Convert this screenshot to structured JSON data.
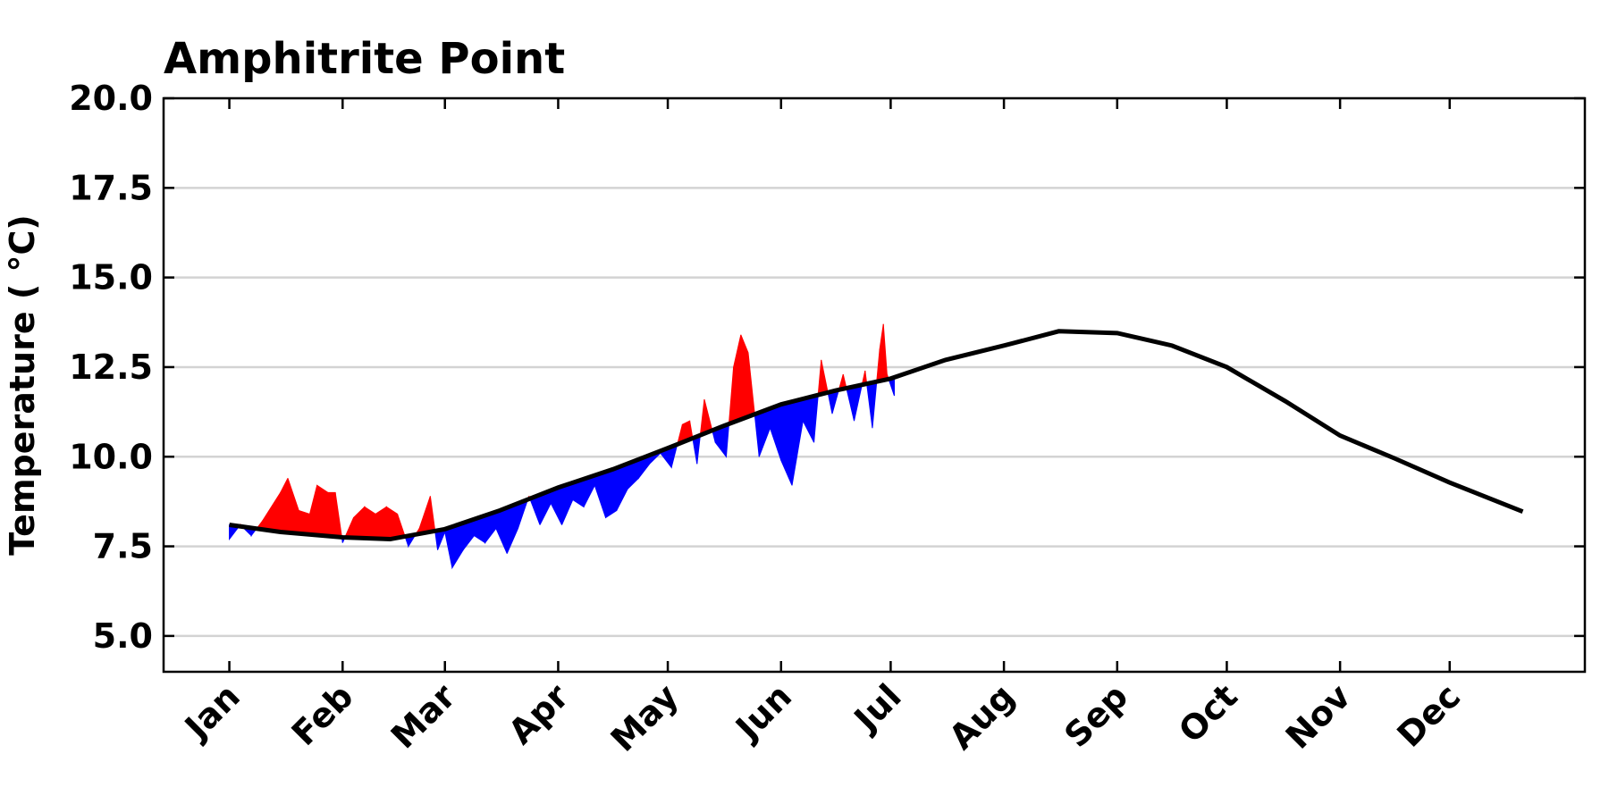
{
  "chart_data": {
    "type": "line",
    "title": "Amphitrite Point",
    "ylabel": "Temperature ( °C)",
    "xlim": [
      -17,
      372
    ],
    "ylim": [
      4,
      20
    ],
    "xticks": [
      {
        "value": 1,
        "label": "Jan"
      },
      {
        "value": 32,
        "label": "Feb"
      },
      {
        "value": 60,
        "label": "Mar"
      },
      {
        "value": 91,
        "label": "Apr"
      },
      {
        "value": 121,
        "label": "May"
      },
      {
        "value": 152,
        "label": "Jun"
      },
      {
        "value": 182,
        "label": "Jul"
      },
      {
        "value": 213,
        "label": "Aug"
      },
      {
        "value": 244,
        "label": "Sep"
      },
      {
        "value": 274,
        "label": "Oct"
      },
      {
        "value": 305,
        "label": "Nov"
      },
      {
        "value": 335,
        "label": "Dec"
      }
    ],
    "yticks": [
      {
        "value": 5,
        "label": "5.0"
      },
      {
        "value": 7.5,
        "label": "7.5"
      },
      {
        "value": 10,
        "label": "10.0"
      },
      {
        "value": 12.5,
        "label": "12.5"
      },
      {
        "value": 15,
        "label": "15.0"
      },
      {
        "value": 17.5,
        "label": "17.5"
      },
      {
        "value": 20,
        "label": "20.0"
      }
    ],
    "grid": true,
    "series": [
      {
        "color": "#000000",
        "x": [
          1,
          15,
          32,
          45,
          60,
          75,
          91,
          106,
          121,
          136,
          152,
          167,
          182,
          197,
          213,
          228,
          244,
          259,
          274,
          290,
          305,
          320,
          335,
          355
        ],
        "values": [
          8.1,
          7.9,
          7.75,
          7.7,
          7.98,
          8.5,
          9.14,
          9.65,
          10.24,
          10.85,
          11.46,
          11.85,
          12.18,
          12.7,
          13.1,
          13.5,
          13.45,
          13.1,
          12.5,
          11.55,
          10.59,
          9.95,
          9.28,
          8.47
        ]
      },
      {
        "above_color": "#ff0000",
        "below_color": "#0000ff",
        "x": [
          1,
          4,
          7,
          10,
          15,
          17,
          20,
          23,
          25,
          28,
          30,
          32,
          35,
          38,
          41,
          44,
          47,
          50,
          53,
          56,
          58,
          60,
          62,
          65,
          68,
          71,
          74,
          77,
          80,
          83,
          86,
          89,
          92,
          95,
          98,
          101,
          104,
          107,
          110,
          113,
          116,
          119,
          122,
          125,
          127,
          129,
          131,
          134,
          137,
          139,
          141,
          143,
          146,
          149,
          152,
          155,
          158,
          161,
          163,
          166,
          169,
          172,
          175,
          177,
          179,
          180,
          181,
          183
        ],
        "values": [
          7.7,
          8.1,
          7.8,
          8.2,
          9.0,
          9.4,
          8.5,
          8.4,
          9.2,
          9.0,
          9.0,
          7.6,
          8.3,
          8.6,
          8.4,
          8.6,
          8.4,
          7.5,
          8.0,
          8.9,
          7.4,
          7.9,
          6.9,
          7.4,
          7.8,
          7.6,
          8.0,
          7.3,
          8.0,
          8.9,
          8.1,
          8.7,
          8.1,
          8.8,
          8.6,
          9.2,
          8.3,
          8.5,
          9.1,
          9.4,
          9.8,
          10.1,
          9.7,
          10.9,
          11.0,
          9.8,
          11.6,
          10.4,
          10.0,
          12.5,
          13.4,
          12.9,
          10.0,
          10.8,
          9.9,
          9.2,
          11.0,
          10.4,
          12.7,
          11.2,
          12.3,
          11.0,
          12.4,
          10.8,
          13.0,
          13.7,
          12.3,
          11.7
        ]
      }
    ]
  }
}
